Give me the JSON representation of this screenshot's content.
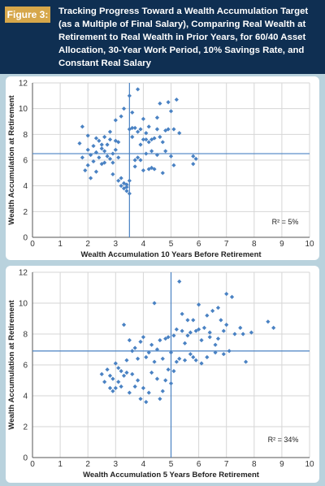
{
  "figure": {
    "label": "Figure 3:",
    "title": "Tracking Progress Toward a Wealth Accumulation Target (as a Multiple of Final Salary), Comparing Real Wealth at Retirement to Real Wealth in Prior Years, for 60/40 Asset Allocation, 30-Year Work Period, 10% Savings Rate, and Constant Real Salary"
  },
  "colors": {
    "header_bg": "#0f2f52",
    "label_bg": "#d6a74a",
    "page_bg": "#b9d2dd",
    "points": "#4a82c3",
    "reference_lines": "#4a82c3",
    "grid": "#d6d6d6"
  },
  "chart_data": [
    {
      "type": "scatter",
      "xlabel": "Wealth Accumulation 10 Years Before Retirement",
      "ylabel": "Wealth Accumulation at Retirement",
      "annotation": "R² = 5%",
      "xlim": [
        0,
        10
      ],
      "ylim": [
        0,
        12
      ],
      "xticks": [
        0,
        1,
        2,
        3,
        4,
        5,
        6,
        7,
        8,
        9,
        10
      ],
      "yticks": [
        0,
        2,
        4,
        6,
        8,
        10,
        12
      ],
      "grid": true,
      "reference_lines": {
        "x": 3.5,
        "y": 6.5
      },
      "x": [
        1.7,
        1.8,
        1.8,
        1.9,
        2.0,
        2.0,
        2.0,
        2.1,
        2.1,
        2.2,
        2.2,
        2.3,
        2.3,
        2.3,
        2.4,
        2.4,
        2.5,
        2.5,
        2.5,
        2.6,
        2.6,
        2.6,
        2.7,
        2.7,
        2.8,
        2.8,
        2.8,
        2.9,
        2.9,
        2.9,
        3.0,
        3.0,
        3.0,
        3.1,
        3.1,
        3.1,
        3.2,
        3.2,
        3.2,
        3.3,
        3.3,
        3.3,
        3.4,
        3.4,
        3.4,
        3.5,
        3.5,
        3.5,
        3.5,
        3.6,
        3.6,
        3.6,
        3.7,
        3.7,
        3.7,
        3.8,
        3.8,
        3.8,
        3.9,
        3.9,
        3.9,
        4.0,
        4.0,
        4.0,
        4.1,
        4.1,
        4.1,
        4.2,
        4.2,
        4.2,
        4.3,
        4.3,
        4.3,
        4.4,
        4.4,
        4.5,
        4.5,
        4.5,
        4.6,
        4.6,
        4.7,
        4.7,
        4.8,
        4.8,
        4.9,
        4.9,
        5.0,
        5.0,
        5.1,
        5.1,
        5.2,
        5.3,
        5.8,
        5.8,
        5.9
      ],
      "y": [
        7.3,
        8.6,
        6.2,
        5.2,
        7.9,
        6.8,
        5.6,
        6.4,
        4.6,
        7.1,
        5.9,
        6.6,
        7.7,
        5.1,
        6.2,
        7.5,
        5.7,
        6.9,
        7.2,
        6.7,
        7.8,
        5.8,
        6.3,
        7.2,
        8.2,
        6.1,
        7.6,
        6.5,
        5.8,
        4.9,
        7.5,
        6.8,
        9.1,
        6.2,
        7.4,
        4.4,
        9.4,
        4.6,
        4.0,
        4.2,
        3.8,
        10.0,
        3.6,
        4.1,
        3.9,
        3.4,
        4.4,
        11.0,
        8.4,
        9.7,
        8.5,
        7.8,
        8.5,
        6.0,
        5.5,
        11.5,
        8.2,
        6.2,
        7.2,
        8.4,
        6.0,
        9.2,
        7.6,
        5.2,
        8.1,
        7.6,
        6.5,
        8.6,
        7.4,
        5.3,
        6.7,
        7.6,
        5.4,
        7.7,
        5.3,
        9.3,
        6.4,
        8.4,
        7.8,
        10.4,
        7.4,
        5.0,
        8.3,
        6.7,
        8.4,
        10.5,
        6.3,
        9.8,
        5.6,
        8.4,
        10.7,
        8.1,
        5.7,
        6.3,
        6.1
      ]
    },
    {
      "type": "scatter",
      "xlabel": "Wealth Accumulation 5 Years Before Retirement",
      "ylabel": "Wealth Accumulation at Retirement",
      "annotation": "R² = 34%",
      "xlim": [
        0,
        10
      ],
      "ylim": [
        0,
        12
      ],
      "xticks": [
        0,
        1,
        2,
        3,
        4,
        5,
        6,
        7,
        8,
        9,
        10
      ],
      "yticks": [
        0,
        2,
        4,
        6,
        8,
        10,
        12
      ],
      "grid": true,
      "reference_lines": {
        "x": 5.0,
        "y": 6.9
      },
      "x": [
        2.5,
        2.6,
        2.7,
        2.8,
        2.8,
        2.9,
        2.9,
        3.0,
        3.0,
        3.1,
        3.1,
        3.2,
        3.2,
        3.3,
        3.3,
        3.4,
        3.4,
        3.5,
        3.5,
        3.6,
        3.6,
        3.7,
        3.7,
        3.8,
        3.8,
        3.9,
        3.9,
        4.0,
        4.0,
        4.1,
        4.1,
        4.2,
        4.2,
        4.3,
        4.3,
        4.4,
        4.4,
        4.5,
        4.5,
        4.6,
        4.6,
        4.7,
        4.7,
        4.8,
        4.8,
        4.9,
        4.9,
        5.0,
        5.0,
        5.1,
        5.1,
        5.2,
        5.2,
        5.3,
        5.3,
        5.4,
        5.4,
        5.5,
        5.5,
        5.6,
        5.6,
        5.7,
        5.7,
        5.8,
        5.8,
        5.9,
        5.9,
        6.0,
        6.0,
        6.1,
        6.1,
        6.2,
        6.3,
        6.3,
        6.4,
        6.4,
        6.5,
        6.6,
        6.6,
        6.7,
        6.7,
        6.8,
        6.9,
        6.9,
        7.0,
        7.0,
        7.1,
        7.2,
        7.3,
        7.5,
        7.6,
        7.7,
        7.9,
        8.5,
        8.7
      ],
      "y": [
        5.4,
        4.9,
        5.7,
        4.5,
        5.3,
        4.3,
        5.1,
        6.1,
        4.5,
        5.8,
        4.9,
        5.6,
        4.6,
        5.3,
        8.6,
        6.3,
        5.5,
        7.6,
        4.2,
        6.9,
        5.4,
        7.1,
        4.6,
        6.4,
        5.0,
        7.5,
        3.8,
        7.8,
        4.5,
        6.5,
        3.6,
        6.8,
        4.2,
        7.3,
        5.5,
        10.0,
        6.2,
        7.0,
        5.1,
        7.6,
        3.8,
        6.4,
        4.3,
        7.7,
        5.0,
        7.8,
        5.7,
        6.8,
        4.8,
        7.9,
        5.6,
        8.3,
        6.2,
        11.4,
        6.4,
        8.2,
        9.3,
        7.4,
        6.3,
        8.9,
        7.9,
        8.1,
        6.7,
        8.9,
        6.5,
        8.2,
        6.3,
        9.9,
        8.3,
        7.6,
        6.1,
        8.4,
        9.2,
        6.5,
        7.8,
        8.1,
        9.5,
        7.3,
        6.8,
        9.7,
        7.7,
        8.9,
        8.2,
        6.7,
        10.6,
        8.6,
        6.9,
        10.4,
        8.0,
        8.4,
        8.0,
        6.2,
        8.1,
        8.8,
        8.4
      ]
    }
  ]
}
